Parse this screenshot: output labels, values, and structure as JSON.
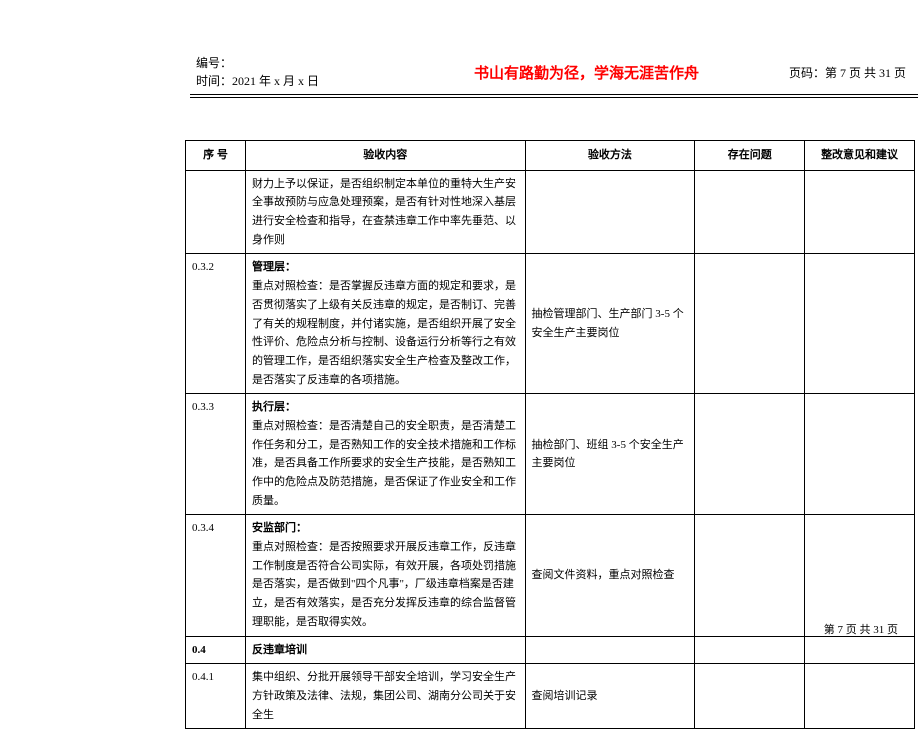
{
  "header": {
    "code_label": "编号：",
    "time_label": "时间：",
    "time_value": "2021 年 x 月 x 日",
    "motto": "书山有路勤为径，学海无涯苦作舟",
    "page_label": "页码：第 7 页  共 31 页"
  },
  "columns": {
    "num": "序 号",
    "content": "验收内容",
    "method": "验收方法",
    "issue": "存在问题",
    "suggest": "整改意见和建议"
  },
  "rows": [
    {
      "num": "",
      "content": "财力上予以保证，是否组织制定本单位的重特大生产安全事故预防与应急处理预案，是否有针对性地深入基层进行安全检查和指导，在查禁违章工作中率先垂范、以身作则",
      "method": "",
      "issue": "",
      "suggest": ""
    },
    {
      "num": "0.3.2",
      "title": "管理层：",
      "content": "重点对照检查：是否掌握反违章方面的规定和要求，是否贯彻落实了上级有关反违章的规定，是否制订、完善了有关的规程制度，并付诸实施，是否组织开展了安全性评价、危险点分析与控制、设备运行分析等行之有效的管理工作，是否组织落实安全生产检查及整改工作，是否落实了反违章的各项措施。",
      "method": "抽检管理部门、生产部门 3-5 个安全生产主要岗位",
      "issue": "",
      "suggest": ""
    },
    {
      "num": "0.3.3",
      "title": "执行层：",
      "content": "重点对照检查：是否清楚自己的安全职责，是否清楚工作任务和分工，是否熟知工作的安全技术措施和工作标准，是否具备工作所要求的安全生产技能，是否熟知工作中的危险点及防范措施，是否保证了作业安全和工作质量。",
      "method": "抽检部门、班组 3-5 个安全生产主要岗位",
      "issue": "",
      "suggest": ""
    },
    {
      "num": "0.3.4",
      "title": "安监部门：",
      "content": "重点对照检查：是否按照要求开展反违章工作，反违章工作制度是否符合公司实际，有效开展，各项处罚措施是否落实，是否做到\"四个凡事\"，厂级违章档案是否建立，是否有效落实，是否充分发挥反违章的综合监督管理职能，是否取得实效。",
      "method": "查阅文件资料，重点对照检查",
      "issue": "",
      "suggest": ""
    },
    {
      "num": "0.4",
      "title": "反违章培训",
      "content": "",
      "method": "",
      "issue": "",
      "suggest": ""
    },
    {
      "num": "0.4.1",
      "content": "集中组织、分批开展领导干部安全培训，学习安全生产方针政策及法律、法规，集团公司、湖南分公司关于安全生",
      "method": "查阅培训记录",
      "issue": "",
      "suggest": ""
    }
  ],
  "footer": "第 7 页  共 31 页"
}
